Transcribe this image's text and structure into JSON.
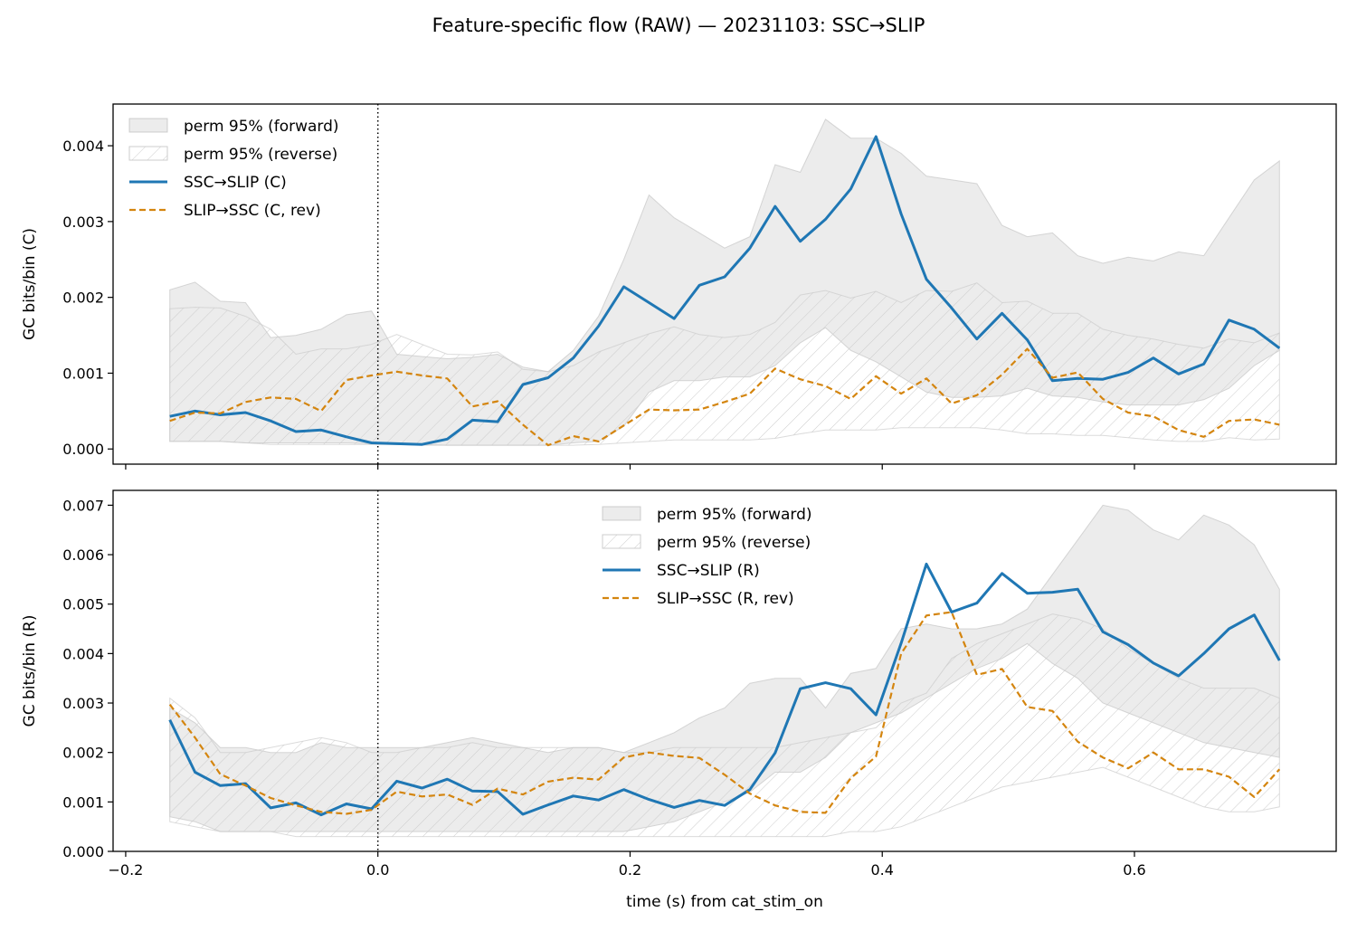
{
  "figure": {
    "title": "Feature-specific flow (RAW) — 20231103: SSC→SLIP",
    "xlabel": "time (s) from cat_stim_on"
  },
  "chart_data": [
    {
      "type": "line",
      "ylabel": "GC bits/bin (C)",
      "xlim": [
        -0.21,
        0.76
      ],
      "ylim": [
        -0.0002,
        0.00455
      ],
      "xticks": [
        -0.2,
        0.0,
        0.2,
        0.4,
        0.6
      ],
      "xtick_labels": [
        "−0.2",
        "0.0",
        "0.2",
        "0.4",
        "0.6"
      ],
      "show_xtick_labels": false,
      "yticks": [
        0.0,
        0.001,
        0.002,
        0.003,
        0.004
      ],
      "ytick_labels": [
        "0.000",
        "0.001",
        "0.002",
        "0.003",
        "0.004"
      ],
      "vline_x": 0.0,
      "legend_position": "upper-left",
      "x": [
        -0.165,
        -0.145,
        -0.125,
        -0.105,
        -0.085,
        -0.065,
        -0.045,
        -0.025,
        -0.005,
        0.015,
        0.035,
        0.055,
        0.075,
        0.095,
        0.115,
        0.135,
        0.155,
        0.175,
        0.195,
        0.215,
        0.235,
        0.255,
        0.275,
        0.295,
        0.315,
        0.335,
        0.355,
        0.375,
        0.395,
        0.415,
        0.435,
        0.455,
        0.475,
        0.495,
        0.515,
        0.535,
        0.555,
        0.575,
        0.595,
        0.615,
        0.635,
        0.655,
        0.675,
        0.695,
        0.715
      ],
      "bands": [
        {
          "name": "perm 95% (forward)",
          "style": "fill",
          "upper": [
            0.0021,
            0.0022,
            0.00195,
            0.00193,
            0.00147,
            0.0015,
            0.00158,
            0.00177,
            0.00182,
            0.00125,
            0.00122,
            0.00119,
            0.00121,
            0.00125,
            0.00108,
            0.00102,
            0.0013,
            0.00175,
            0.0025,
            0.00335,
            0.00305,
            0.00285,
            0.00265,
            0.0028,
            0.00375,
            0.00365,
            0.00435,
            0.0041,
            0.0041,
            0.0039,
            0.0036,
            0.00355,
            0.0035,
            0.00295,
            0.0028,
            0.00285,
            0.00255,
            0.00245,
            0.00253,
            0.00248,
            0.0026,
            0.00255,
            0.00305,
            0.00355,
            0.0038
          ],
          "lower": [
            0.0001,
            0.0001,
            0.0001,
            8e-05,
            8e-05,
            8e-05,
            8e-05,
            8e-05,
            7e-05,
            6e-05,
            6e-05,
            5e-05,
            5e-05,
            5e-05,
            5e-05,
            5e-05,
            8e-05,
            0.0001,
            0.0003,
            0.00075,
            0.0009,
            0.0009,
            0.00095,
            0.00095,
            0.0011,
            0.0014,
            0.0016,
            0.0013,
            0.00115,
            0.00095,
            0.00075,
            0.00068,
            0.00068,
            0.0007,
            0.0008,
            0.0007,
            0.00068,
            0.00062,
            0.00058,
            0.00058,
            0.00058,
            0.00065,
            0.0008,
            0.0011,
            0.0013
          ]
        },
        {
          "name": "perm 95% (reverse)",
          "style": "hatch",
          "upper": [
            0.00185,
            0.00187,
            0.00186,
            0.00175,
            0.00158,
            0.00125,
            0.00132,
            0.00132,
            0.00138,
            0.00151,
            0.00138,
            0.00125,
            0.00124,
            0.00128,
            0.00105,
            0.00102,
            0.0011,
            0.00128,
            0.0014,
            0.00152,
            0.00161,
            0.00151,
            0.00147,
            0.00151,
            0.00167,
            0.00203,
            0.00209,
            0.00199,
            0.00208,
            0.00193,
            0.00209,
            0.00208,
            0.00219,
            0.00193,
            0.00195,
            0.00179,
            0.00179,
            0.00158,
            0.0015,
            0.00145,
            0.00138,
            0.00133,
            0.00145,
            0.0014,
            0.00153
          ],
          "lower": [
            0.0001,
            0.0001,
            0.0001,
            8e-05,
            6e-05,
            6e-05,
            6e-05,
            6e-05,
            6e-05,
            6e-05,
            5e-05,
            5e-05,
            5e-05,
            5e-05,
            5e-05,
            5e-05,
            5e-05,
            6e-05,
            8e-05,
            0.0001,
            0.00012,
            0.00012,
            0.00012,
            0.00012,
            0.00014,
            0.0002,
            0.00025,
            0.00025,
            0.00025,
            0.00028,
            0.00028,
            0.00028,
            0.00028,
            0.00025,
            0.0002,
            0.0002,
            0.00018,
            0.00018,
            0.00015,
            0.00012,
            0.0001,
            0.0001,
            0.00015,
            0.00012,
            0.00013
          ]
        }
      ],
      "series": [
        {
          "name": "SSC→SLIP (C)",
          "color": "#1f77b4",
          "dashed": false,
          "values": [
            0.00043,
            0.0005,
            0.00045,
            0.00048,
            0.00037,
            0.00023,
            0.00025,
            0.00016,
            8e-05,
            7e-05,
            6e-05,
            0.00013,
            0.00038,
            0.00036,
            0.00085,
            0.00094,
            0.0012,
            0.00162,
            0.00214,
            0.00193,
            0.00172,
            0.00216,
            0.00227,
            0.00265,
            0.0032,
            0.00274,
            0.00303,
            0.00343,
            0.00412,
            0.0031,
            0.00224,
            0.00186,
            0.00145,
            0.00179,
            0.00144,
            0.0009,
            0.00093,
            0.00092,
            0.00101,
            0.0012,
            0.00099,
            0.00112,
            0.0017,
            0.00158,
            0.00133
          ]
        },
        {
          "name": "SLIP→SSC (C, rev)",
          "color": "#d4850f",
          "dashed": true,
          "values": [
            0.00037,
            0.00048,
            0.00047,
            0.00062,
            0.00068,
            0.00066,
            0.0005,
            0.00091,
            0.00097,
            0.00102,
            0.00097,
            0.00093,
            0.00056,
            0.00063,
            0.00032,
            5e-05,
            0.00017,
            0.0001,
            0.00031,
            0.00052,
            0.00051,
            0.00052,
            0.00062,
            0.00073,
            0.00106,
            0.00092,
            0.00083,
            0.00066,
            0.00096,
            0.00073,
            0.00093,
            0.0006,
            0.00071,
            0.00098,
            0.00132,
            0.00094,
            0.00101,
            0.00066,
            0.00048,
            0.00043,
            0.00025,
            0.00016,
            0.00037,
            0.00039,
            0.00032
          ]
        }
      ]
    },
    {
      "type": "line",
      "ylabel": "GC bits/bin (R)",
      "xlim": [
        -0.21,
        0.76
      ],
      "ylim": [
        0.0,
        0.0073
      ],
      "xticks": [
        -0.2,
        0.0,
        0.2,
        0.4,
        0.6
      ],
      "xtick_labels": [
        "−0.2",
        "0.0",
        "0.2",
        "0.4",
        "0.6"
      ],
      "show_xtick_labels": true,
      "yticks": [
        0.0,
        0.001,
        0.002,
        0.003,
        0.004,
        0.005,
        0.006,
        0.007
      ],
      "ytick_labels": [
        "0.000",
        "0.001",
        "0.002",
        "0.003",
        "0.004",
        "0.005",
        "0.006",
        "0.007"
      ],
      "vline_x": 0.0,
      "legend_position": "upper-center",
      "x": [
        -0.165,
        -0.145,
        -0.125,
        -0.105,
        -0.085,
        -0.065,
        -0.045,
        -0.025,
        -0.005,
        0.015,
        0.035,
        0.055,
        0.075,
        0.095,
        0.115,
        0.135,
        0.155,
        0.175,
        0.195,
        0.215,
        0.235,
        0.255,
        0.275,
        0.295,
        0.315,
        0.335,
        0.355,
        0.375,
        0.395,
        0.415,
        0.435,
        0.455,
        0.475,
        0.495,
        0.515,
        0.535,
        0.555,
        0.575,
        0.595,
        0.615,
        0.635,
        0.655,
        0.675,
        0.695,
        0.715
      ],
      "bands": [
        {
          "name": "perm 95% (forward)",
          "style": "fill",
          "upper": [
            0.0029,
            0.0026,
            0.0021,
            0.0021,
            0.002,
            0.002,
            0.0022,
            0.0021,
            0.0021,
            0.0021,
            0.0021,
            0.0022,
            0.0023,
            0.0022,
            0.0021,
            0.002,
            0.0021,
            0.0021,
            0.002,
            0.0022,
            0.0024,
            0.0027,
            0.0029,
            0.0034,
            0.0035,
            0.0035,
            0.0029,
            0.0036,
            0.0037,
            0.0045,
            0.0046,
            0.0045,
            0.0045,
            0.0046,
            0.0049,
            0.0056,
            0.0063,
            0.007,
            0.0069,
            0.0065,
            0.0063,
            0.0068,
            0.0066,
            0.0062,
            0.0053
          ],
          "lower": [
            0.0007,
            0.0006,
            0.0004,
            0.0004,
            0.0004,
            0.0004,
            0.0004,
            0.0004,
            0.0004,
            0.0004,
            0.0004,
            0.0004,
            0.0004,
            0.0004,
            0.0004,
            0.0004,
            0.0004,
            0.0004,
            0.0004,
            0.0005,
            0.0006,
            0.0008,
            0.001,
            0.0012,
            0.0016,
            0.0016,
            0.0019,
            0.0024,
            0.0026,
            0.0028,
            0.0031,
            0.0034,
            0.0037,
            0.0039,
            0.0042,
            0.0038,
            0.0035,
            0.003,
            0.0028,
            0.0026,
            0.0024,
            0.0022,
            0.0021,
            0.002,
            0.0019
          ]
        },
        {
          "name": "perm 95% (reverse)",
          "style": "hatch",
          "upper": [
            0.0031,
            0.0027,
            0.002,
            0.002,
            0.0021,
            0.0022,
            0.0023,
            0.0022,
            0.002,
            0.002,
            0.0021,
            0.0021,
            0.0022,
            0.0021,
            0.0021,
            0.0021,
            0.0021,
            0.0021,
            0.002,
            0.002,
            0.0021,
            0.0021,
            0.0021,
            0.0021,
            0.0021,
            0.0022,
            0.0023,
            0.0024,
            0.0025,
            0.003,
            0.0032,
            0.0039,
            0.0042,
            0.0044,
            0.0046,
            0.0048,
            0.0047,
            0.0045,
            0.0041,
            0.0038,
            0.0035,
            0.0033,
            0.0033,
            0.0033,
            0.0031
          ],
          "lower": [
            0.0006,
            0.0005,
            0.0004,
            0.0004,
            0.0004,
            0.0003,
            0.0003,
            0.0003,
            0.0003,
            0.0003,
            0.0003,
            0.0003,
            0.0003,
            0.0003,
            0.0003,
            0.0003,
            0.0003,
            0.0003,
            0.0003,
            0.0003,
            0.0003,
            0.0003,
            0.0003,
            0.0003,
            0.0003,
            0.0003,
            0.0003,
            0.0004,
            0.0004,
            0.0005,
            0.0007,
            0.0009,
            0.0011,
            0.0013,
            0.0014,
            0.0015,
            0.0016,
            0.0017,
            0.0015,
            0.0013,
            0.0011,
            0.0009,
            0.0008,
            0.0008,
            0.0009
          ]
        }
      ],
      "series": [
        {
          "name": "SSC→SLIP (R)",
          "color": "#1f77b4",
          "dashed": false,
          "values": [
            0.00266,
            0.0016,
            0.00133,
            0.00137,
            0.00088,
            0.00098,
            0.00074,
            0.00096,
            0.00086,
            0.00142,
            0.00128,
            0.00146,
            0.00122,
            0.00121,
            0.00075,
            0.00094,
            0.00112,
            0.00104,
            0.00125,
            0.00105,
            0.00089,
            0.00103,
            0.00093,
            0.00125,
            0.00199,
            0.00329,
            0.00341,
            0.00329,
            0.00276,
            0.00421,
            0.00581,
            0.00484,
            0.00502,
            0.00562,
            0.00522,
            0.00524,
            0.0053,
            0.00444,
            0.00418,
            0.00381,
            0.00355,
            0.004,
            0.0045,
            0.00478,
            0.00386
          ]
        },
        {
          "name": "SLIP→SSC (R, rev)",
          "color": "#d4850f",
          "dashed": true,
          "values": [
            0.00297,
            0.0023,
            0.00156,
            0.00133,
            0.00108,
            0.00093,
            0.0008,
            0.00076,
            0.00084,
            0.00121,
            0.00111,
            0.00115,
            0.00094,
            0.00127,
            0.00115,
            0.00141,
            0.00149,
            0.00145,
            0.0019,
            0.002,
            0.00193,
            0.00189,
            0.00155,
            0.00117,
            0.00093,
            0.0008,
            0.00078,
            0.00148,
            0.00192,
            0.004,
            0.00477,
            0.00484,
            0.00357,
            0.00369,
            0.00292,
            0.00284,
            0.00222,
            0.0019,
            0.00168,
            0.002,
            0.00166,
            0.00166,
            0.00151,
            0.0011,
            0.00166
          ]
        }
      ]
    }
  ]
}
